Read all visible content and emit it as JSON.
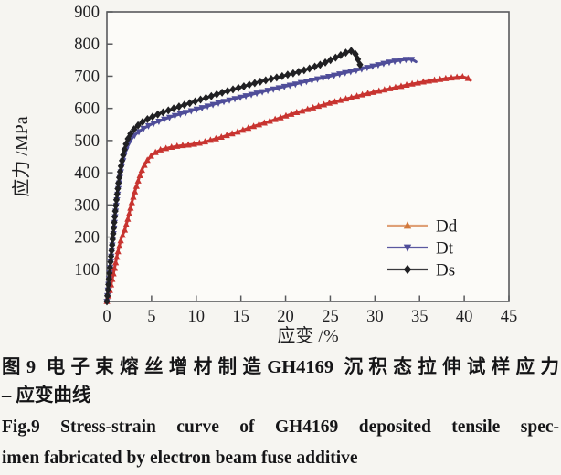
{
  "figure_caption": {
    "zh_line1": "图9  电子束熔丝增材制造GH4169 沉积态拉伸试样应力",
    "zh_line2": "– 应变曲线",
    "en_line1": "Fig.9   Stress-strain curve of GH4169 deposited tensile spec-",
    "en_line2": "imen fabricated by electron beam fuse additive"
  },
  "chart_data": {
    "type": "line",
    "title": "",
    "xlabel": "应变 /%",
    "ylabel": "应力 /MPa",
    "xlim": [
      0,
      45
    ],
    "ylim": [
      0,
      900
    ],
    "xticks": [
      0,
      5,
      10,
      15,
      20,
      25,
      30,
      35,
      40,
      45
    ],
    "yticks": [
      100,
      200,
      300,
      400,
      500,
      600,
      700,
      800,
      900
    ],
    "grid": false,
    "legend_position": "inside-lower-right",
    "colors": {
      "axis_border": "#595a5d",
      "tick_text": "#1f1f21",
      "plot_bg": "#fcfbf8"
    },
    "series": [
      {
        "name": "Dd",
        "color": "#c83430",
        "legend_line_color": "#dfa077",
        "legend_marker_color": "#d2793c",
        "marker": "triangle-up",
        "points": [
          [
            0,
            0
          ],
          [
            0.3,
            30
          ],
          [
            0.8,
            95
          ],
          [
            1.2,
            150
          ],
          [
            1.6,
            195
          ],
          [
            2.0,
            222
          ],
          [
            2.4,
            262
          ],
          [
            2.8,
            308
          ],
          [
            3.2,
            348
          ],
          [
            3.6,
            384
          ],
          [
            4.0,
            414
          ],
          [
            4.5,
            438
          ],
          [
            5.0,
            454
          ],
          [
            5.5,
            464
          ],
          [
            6,
            471
          ],
          [
            7,
            478
          ],
          [
            8,
            483
          ],
          [
            9,
            486
          ],
          [
            10,
            490
          ],
          [
            11,
            496
          ],
          [
            12,
            504
          ],
          [
            13,
            512
          ],
          [
            14,
            521
          ],
          [
            15,
            530
          ],
          [
            16,
            540
          ],
          [
            17,
            549
          ],
          [
            18,
            558
          ],
          [
            19,
            567
          ],
          [
            20,
            576
          ],
          [
            21,
            585
          ],
          [
            22,
            593
          ],
          [
            23,
            601
          ],
          [
            24,
            609
          ],
          [
            25,
            617
          ],
          [
            26,
            624
          ],
          [
            27,
            631
          ],
          [
            28,
            638
          ],
          [
            29,
            645
          ],
          [
            30,
            651
          ],
          [
            31,
            657
          ],
          [
            32,
            663
          ],
          [
            33,
            669
          ],
          [
            34,
            675
          ],
          [
            35,
            680
          ],
          [
            36,
            685
          ],
          [
            37,
            689
          ],
          [
            38,
            693
          ],
          [
            39,
            696
          ],
          [
            39.8,
            698
          ],
          [
            40.4,
            694
          ],
          [
            40.7,
            687
          ]
        ]
      },
      {
        "name": "Dt",
        "color": "#4f4d99",
        "legend_line_color": "#5a58a0",
        "legend_marker_color": "#4f4d99",
        "marker": "triangle-down",
        "points": [
          [
            0,
            0
          ],
          [
            0.3,
            85
          ],
          [
            0.7,
            200
          ],
          [
            1.0,
            285
          ],
          [
            1.3,
            355
          ],
          [
            1.6,
            410
          ],
          [
            1.9,
            448
          ],
          [
            2.2,
            476
          ],
          [
            2.5,
            495
          ],
          [
            2.8,
            508
          ],
          [
            3.2,
            519
          ],
          [
            3.6,
            528
          ],
          [
            4.0,
            536
          ],
          [
            4.5,
            544
          ],
          [
            5.0,
            551
          ],
          [
            6,
            562
          ],
          [
            7,
            572
          ],
          [
            8,
            581
          ],
          [
            9,
            589
          ],
          [
            10,
            597
          ],
          [
            11,
            605
          ],
          [
            12,
            613
          ],
          [
            13,
            621
          ],
          [
            14,
            628
          ],
          [
            15,
            635
          ],
          [
            16,
            642
          ],
          [
            17,
            649
          ],
          [
            18,
            656
          ],
          [
            19,
            662
          ],
          [
            20,
            669
          ],
          [
            21,
            675
          ],
          [
            22,
            682
          ],
          [
            23,
            688
          ],
          [
            24,
            694
          ],
          [
            25,
            700
          ],
          [
            26,
            707
          ],
          [
            27,
            713
          ],
          [
            28,
            719
          ],
          [
            29,
            726
          ],
          [
            30,
            733
          ],
          [
            31,
            740
          ],
          [
            32,
            746
          ],
          [
            33,
            750
          ],
          [
            33.6,
            753
          ],
          [
            34.2,
            752
          ],
          [
            34.6,
            745
          ]
        ]
      },
      {
        "name": "Ds",
        "color": "#202023",
        "legend_line_color": "#3a3a3d",
        "legend_marker_color": "#202023",
        "marker": "diamond",
        "points": [
          [
            0,
            0
          ],
          [
            0.3,
            90
          ],
          [
            0.7,
            210
          ],
          [
            1.0,
            300
          ],
          [
            1.3,
            370
          ],
          [
            1.6,
            425
          ],
          [
            1.9,
            465
          ],
          [
            2.2,
            495
          ],
          [
            2.5,
            515
          ],
          [
            2.8,
            528
          ],
          [
            3.2,
            540
          ],
          [
            3.6,
            550
          ],
          [
            4.0,
            558
          ],
          [
            4.5,
            566
          ],
          [
            5.0,
            573
          ],
          [
            6,
            585
          ],
          [
            7,
            595
          ],
          [
            8,
            605
          ],
          [
            9,
            614
          ],
          [
            10,
            623
          ],
          [
            11,
            632
          ],
          [
            12,
            641
          ],
          [
            13,
            650
          ],
          [
            14,
            658
          ],
          [
            15,
            666
          ],
          [
            16,
            674
          ],
          [
            17,
            682
          ],
          [
            18,
            689
          ],
          [
            19,
            696
          ],
          [
            20,
            703
          ],
          [
            21,
            710
          ],
          [
            22,
            718
          ],
          [
            23,
            727
          ],
          [
            24,
            737
          ],
          [
            25,
            750
          ],
          [
            26,
            763
          ],
          [
            26.8,
            774
          ],
          [
            27.4,
            779
          ],
          [
            27.8,
            770
          ],
          [
            28.1,
            752
          ],
          [
            28.4,
            731
          ]
        ]
      }
    ]
  }
}
